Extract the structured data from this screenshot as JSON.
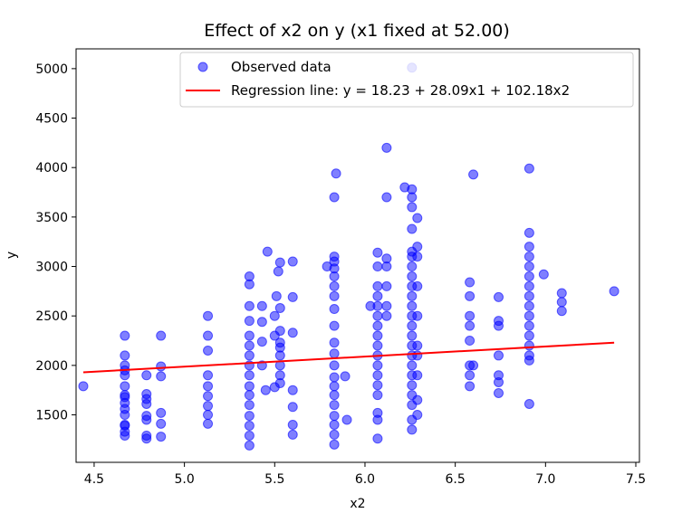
{
  "chart_data": {
    "type": "scatter",
    "title": "Effect of x2 on y (x1 fixed at 52.00)",
    "xlabel": "x2",
    "ylabel": "y",
    "xlim": [
      4.4,
      7.52
    ],
    "ylim": [
      1020,
      5200
    ],
    "xticks": [
      4.5,
      5.0,
      5.5,
      6.0,
      6.5,
      7.0,
      7.5
    ],
    "xtick_labels": [
      "4.5",
      "5.0",
      "5.5",
      "6.0",
      "6.5",
      "7.0",
      "7.5"
    ],
    "yticks": [
      1500,
      2000,
      2500,
      3000,
      3500,
      4000,
      4500,
      5000
    ],
    "ytick_labels": [
      "1500",
      "2000",
      "2500",
      "3000",
      "3500",
      "4000",
      "4500",
      "5000"
    ],
    "grid": false,
    "legend": {
      "position": "top-right",
      "entries": [
        "Observed data",
        "Regression line: y = 18.23 + 28.09x1 + 102.18x2"
      ]
    },
    "series": [
      {
        "name": "Observed data",
        "kind": "scatter",
        "color": "#0000ff",
        "points": [
          [
            4.44,
            1790
          ],
          [
            4.67,
            1290
          ],
          [
            4.67,
            1330
          ],
          [
            4.67,
            1390
          ],
          [
            4.67,
            1400
          ],
          [
            4.67,
            1500
          ],
          [
            4.67,
            1560
          ],
          [
            4.67,
            1620
          ],
          [
            4.67,
            1680
          ],
          [
            4.67,
            1700
          ],
          [
            4.67,
            1790
          ],
          [
            4.67,
            1900
          ],
          [
            4.67,
            1950
          ],
          [
            4.67,
            2000
          ],
          [
            4.67,
            2100
          ],
          [
            4.67,
            2300
          ],
          [
            4.79,
            1260
          ],
          [
            4.79,
            1290
          ],
          [
            4.79,
            1450
          ],
          [
            4.79,
            1490
          ],
          [
            4.79,
            1610
          ],
          [
            4.79,
            1660
          ],
          [
            4.79,
            1710
          ],
          [
            4.79,
            1900
          ],
          [
            4.87,
            1280
          ],
          [
            4.87,
            1410
          ],
          [
            4.87,
            1520
          ],
          [
            4.87,
            1890
          ],
          [
            4.87,
            1990
          ],
          [
            4.87,
            2300
          ],
          [
            5.13,
            1410
          ],
          [
            5.13,
            1500
          ],
          [
            5.13,
            1590
          ],
          [
            5.13,
            1690
          ],
          [
            5.13,
            1790
          ],
          [
            5.13,
            1900
          ],
          [
            5.13,
            2150
          ],
          [
            5.13,
            2300
          ],
          [
            5.13,
            2500
          ],
          [
            5.36,
            1190
          ],
          [
            5.36,
            1290
          ],
          [
            5.36,
            1390
          ],
          [
            5.36,
            1490
          ],
          [
            5.36,
            1600
          ],
          [
            5.36,
            1700
          ],
          [
            5.36,
            1790
          ],
          [
            5.36,
            1900
          ],
          [
            5.36,
            2000
          ],
          [
            5.36,
            2100
          ],
          [
            5.36,
            2200
          ],
          [
            5.36,
            2300
          ],
          [
            5.36,
            2450
          ],
          [
            5.36,
            2600
          ],
          [
            5.36,
            2820
          ],
          [
            5.36,
            2900
          ],
          [
            5.43,
            2000
          ],
          [
            5.43,
            2240
          ],
          [
            5.43,
            2440
          ],
          [
            5.43,
            2600
          ],
          [
            5.45,
            1750
          ],
          [
            5.46,
            3150
          ],
          [
            5.5,
            1780
          ],
          [
            5.5,
            2300
          ],
          [
            5.5,
            2500
          ],
          [
            5.51,
            2700
          ],
          [
            5.52,
            2950
          ],
          [
            5.53,
            3040
          ],
          [
            5.53,
            1820
          ],
          [
            5.53,
            1900
          ],
          [
            5.53,
            2000
          ],
          [
            5.53,
            2100
          ],
          [
            5.53,
            2180
          ],
          [
            5.53,
            2230
          ],
          [
            5.53,
            2350
          ],
          [
            5.53,
            2580
          ],
          [
            5.6,
            1300
          ],
          [
            5.6,
            1400
          ],
          [
            5.6,
            1580
          ],
          [
            5.6,
            1750
          ],
          [
            5.6,
            2330
          ],
          [
            5.6,
            2690
          ],
          [
            5.6,
            3050
          ],
          [
            5.79,
            3000
          ],
          [
            5.83,
            1200
          ],
          [
            5.83,
            1300
          ],
          [
            5.83,
            1400
          ],
          [
            5.83,
            1490
          ],
          [
            5.83,
            1600
          ],
          [
            5.83,
            1700
          ],
          [
            5.83,
            1790
          ],
          [
            5.83,
            1880
          ],
          [
            5.83,
            2000
          ],
          [
            5.83,
            2120
          ],
          [
            5.83,
            2230
          ],
          [
            5.83,
            2400
          ],
          [
            5.83,
            2570
          ],
          [
            5.83,
            2700
          ],
          [
            5.83,
            2800
          ],
          [
            5.83,
            2900
          ],
          [
            5.83,
            2980
          ],
          [
            5.83,
            3050
          ],
          [
            5.83,
            3100
          ],
          [
            5.83,
            3700
          ],
          [
            5.84,
            3940
          ],
          [
            5.89,
            1890
          ],
          [
            5.9,
            1450
          ],
          [
            6.03,
            2600
          ],
          [
            6.07,
            1260
          ],
          [
            6.07,
            1450
          ],
          [
            6.07,
            1520
          ],
          [
            6.07,
            1700
          ],
          [
            6.07,
            1800
          ],
          [
            6.07,
            1900
          ],
          [
            6.07,
            2000
          ],
          [
            6.07,
            2100
          ],
          [
            6.07,
            2200
          ],
          [
            6.07,
            2300
          ],
          [
            6.07,
            2400
          ],
          [
            6.07,
            2500
          ],
          [
            6.07,
            2600
          ],
          [
            6.07,
            2700
          ],
          [
            6.07,
            2800
          ],
          [
            6.07,
            3000
          ],
          [
            6.07,
            3140
          ],
          [
            6.12,
            2500
          ],
          [
            6.12,
            2600
          ],
          [
            6.12,
            2800
          ],
          [
            6.12,
            3000
          ],
          [
            6.12,
            3080
          ],
          [
            6.12,
            3700
          ],
          [
            6.12,
            4200
          ],
          [
            6.22,
            3800
          ],
          [
            6.26,
            1350
          ],
          [
            6.26,
            1450
          ],
          [
            6.26,
            1600
          ],
          [
            6.26,
            1700
          ],
          [
            6.26,
            1800
          ],
          [
            6.26,
            1900
          ],
          [
            6.26,
            2000
          ],
          [
            6.26,
            2100
          ],
          [
            6.26,
            2200
          ],
          [
            6.26,
            2300
          ],
          [
            6.26,
            2400
          ],
          [
            6.26,
            2500
          ],
          [
            6.26,
            2600
          ],
          [
            6.26,
            2700
          ],
          [
            6.26,
            2800
          ],
          [
            6.26,
            2900
          ],
          [
            6.26,
            3000
          ],
          [
            6.26,
            3100
          ],
          [
            6.26,
            3150
          ],
          [
            6.26,
            3380
          ],
          [
            6.26,
            3600
          ],
          [
            6.26,
            3700
          ],
          [
            6.26,
            3780
          ],
          [
            6.26,
            5010
          ],
          [
            6.29,
            1500
          ],
          [
            6.29,
            1650
          ],
          [
            6.29,
            1900
          ],
          [
            6.29,
            2100
          ],
          [
            6.29,
            2200
          ],
          [
            6.29,
            2500
          ],
          [
            6.29,
            2800
          ],
          [
            6.29,
            3100
          ],
          [
            6.29,
            3200
          ],
          [
            6.29,
            3490
          ],
          [
            6.58,
            1790
          ],
          [
            6.58,
            1900
          ],
          [
            6.58,
            2000
          ],
          [
            6.58,
            2250
          ],
          [
            6.58,
            2400
          ],
          [
            6.58,
            2500
          ],
          [
            6.58,
            2700
          ],
          [
            6.58,
            2840
          ],
          [
            6.6,
            2000
          ],
          [
            6.6,
            3930
          ],
          [
            6.74,
            1720
          ],
          [
            6.74,
            1830
          ],
          [
            6.74,
            1900
          ],
          [
            6.74,
            2100
          ],
          [
            6.74,
            2400
          ],
          [
            6.74,
            2450
          ],
          [
            6.74,
            2690
          ],
          [
            6.91,
            1610
          ],
          [
            6.91,
            2050
          ],
          [
            6.91,
            2100
          ],
          [
            6.91,
            2200
          ],
          [
            6.91,
            2300
          ],
          [
            6.91,
            2400
          ],
          [
            6.91,
            2500
          ],
          [
            6.91,
            2600
          ],
          [
            6.91,
            2700
          ],
          [
            6.91,
            2800
          ],
          [
            6.91,
            2900
          ],
          [
            6.91,
            3000
          ],
          [
            6.91,
            3100
          ],
          [
            6.91,
            3200
          ],
          [
            6.91,
            3340
          ],
          [
            6.91,
            3990
          ],
          [
            6.99,
            2920
          ],
          [
            7.09,
            2550
          ],
          [
            7.09,
            2640
          ],
          [
            7.09,
            2730
          ],
          [
            7.38,
            2750
          ]
        ]
      },
      {
        "name": "Regression line: y = 18.23 + 28.09x1 + 102.18x2",
        "kind": "line",
        "color": "#ff0000",
        "points": [
          [
            4.44,
            1930
          ],
          [
            7.38,
            2230
          ]
        ]
      }
    ]
  }
}
